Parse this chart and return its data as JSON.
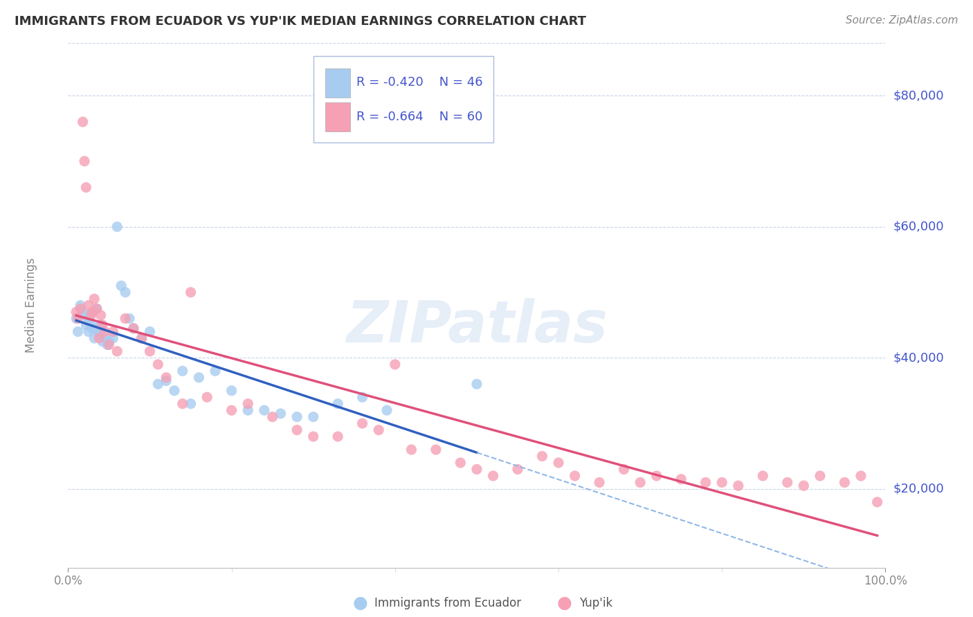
{
  "title": "IMMIGRANTS FROM ECUADOR VS YUP'IK MEDIAN EARNINGS CORRELATION CHART",
  "source": "Source: ZipAtlas.com",
  "ylabel": "Median Earnings",
  "xlim": [
    0.0,
    100.0
  ],
  "ylim": [
    8000,
    88000
  ],
  "yticks": [
    20000,
    40000,
    60000,
    80000
  ],
  "ytick_labels": [
    "$20,000",
    "$40,000",
    "$60,000",
    "$80,000"
  ],
  "xtick_labels": [
    "0.0%",
    "100.0%"
  ],
  "watermark": "ZIPatlas",
  "legend_blue_R": "R = -0.420",
  "legend_blue_N": "N = 46",
  "legend_pink_R": "R = -0.664",
  "legend_pink_N": "N = 60",
  "series1_color": "#a8ccf0",
  "series2_color": "#f5a0b5",
  "line1_color": "#3060c0",
  "line2_color": "#e0507a",
  "dashed_line_color": "#90b8e8",
  "background_color": "#ffffff",
  "grid_color": "#c8d4e8",
  "title_color": "#333333",
  "axis_label_color": "#4455cc",
  "tick_color": "#888888",
  "ecuador_x": [
    1.0,
    1.2,
    1.5,
    1.8,
    2.0,
    2.2,
    2.5,
    2.5,
    2.8,
    3.0,
    3.0,
    3.2,
    3.5,
    3.5,
    3.8,
    4.0,
    4.0,
    4.2,
    4.5,
    4.8,
    5.0,
    5.5,
    6.0,
    6.5,
    7.0,
    7.5,
    8.0,
    9.0,
    10.0,
    11.0,
    12.0,
    13.0,
    14.0,
    15.0,
    16.0,
    18.0,
    20.0,
    22.0,
    24.0,
    26.0,
    28.0,
    30.0,
    33.0,
    36.0,
    39.0,
    50.0
  ],
  "ecuador_y": [
    46000,
    44000,
    48000,
    47000,
    46500,
    45000,
    44000,
    46000,
    45000,
    47000,
    44500,
    43000,
    44500,
    47500,
    43500,
    45000,
    44000,
    42500,
    43000,
    42000,
    42500,
    43000,
    60000,
    51000,
    50000,
    46000,
    44500,
    43000,
    44000,
    36000,
    36500,
    35000,
    38000,
    33000,
    37000,
    38000,
    35000,
    32000,
    32000,
    31500,
    31000,
    31000,
    33000,
    34000,
    32000,
    36000
  ],
  "yupik_x": [
    1.0,
    1.2,
    1.5,
    1.8,
    2.0,
    2.2,
    2.5,
    2.8,
    3.0,
    3.2,
    3.5,
    3.8,
    4.0,
    4.2,
    4.5,
    5.0,
    5.5,
    6.0,
    7.0,
    8.0,
    9.0,
    10.0,
    11.0,
    12.0,
    14.0,
    15.0,
    17.0,
    20.0,
    22.0,
    25.0,
    28.0,
    30.0,
    33.0,
    36.0,
    38.0,
    40.0,
    42.0,
    45.0,
    48.0,
    50.0,
    52.0,
    55.0,
    58.0,
    60.0,
    62.0,
    65.0,
    68.0,
    70.0,
    72.0,
    75.0,
    78.0,
    80.0,
    82.0,
    85.0,
    88.0,
    90.0,
    92.0,
    95.0,
    97.0,
    99.0
  ],
  "yupik_y": [
    47000,
    46000,
    47500,
    76000,
    70000,
    66000,
    48000,
    46500,
    47000,
    49000,
    47500,
    43000,
    46500,
    45000,
    44000,
    42000,
    44000,
    41000,
    46000,
    44500,
    43000,
    41000,
    39000,
    37000,
    33000,
    50000,
    34000,
    32000,
    33000,
    31000,
    29000,
    28000,
    28000,
    30000,
    29000,
    39000,
    26000,
    26000,
    24000,
    23000,
    22000,
    23000,
    25000,
    24000,
    22000,
    21000,
    23000,
    21000,
    22000,
    21500,
    21000,
    21000,
    20500,
    22000,
    21000,
    20500,
    22000,
    21000,
    22000,
    18000
  ]
}
